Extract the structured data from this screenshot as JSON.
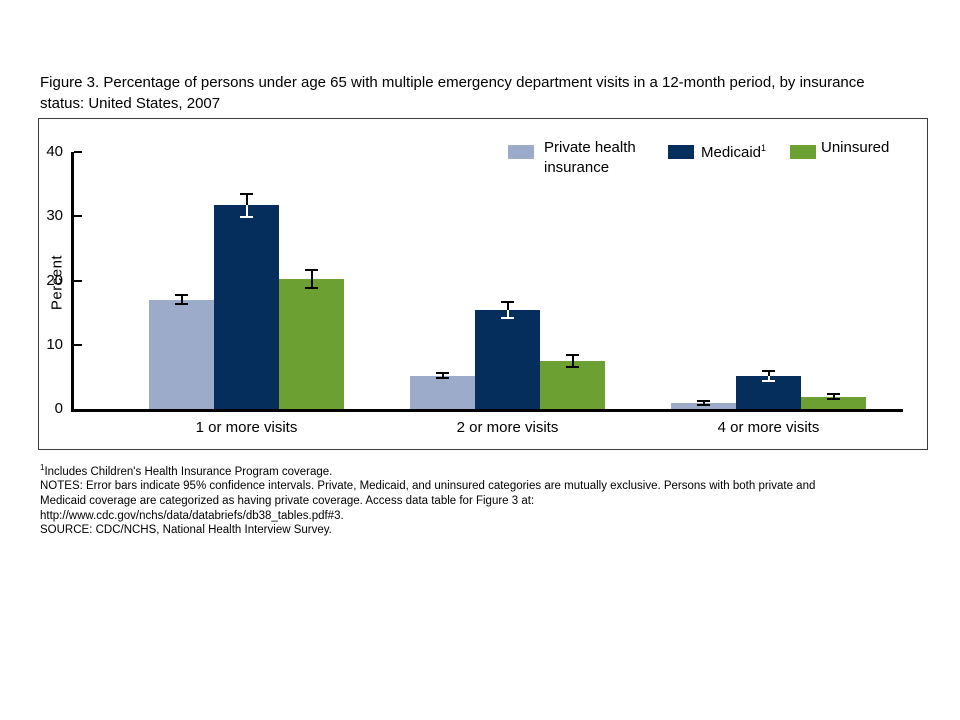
{
  "figure": {
    "title": "Figure 3. Percentage of persons under age 65 with multiple emergency department visits in a 12-month period, by insurance status: United States, 2007"
  },
  "chart_data": {
    "type": "bar",
    "title": "Percentage of persons under age 65 with multiple emergency department visits in a 12-month period, by insurance status: United States, 2007",
    "xlabel": "",
    "ylabel": "Percent",
    "ylim": [
      0,
      40
    ],
    "yticks": [
      0,
      10,
      20,
      30,
      40
    ],
    "grid": false,
    "legend_position": "top-right-inside",
    "error_bars_note": "Error bars indicate 95% confidence intervals",
    "categories": [
      "1 or more visits",
      "2 or more visits",
      "4 or more visits"
    ],
    "series": [
      {
        "name": "Private health insurance",
        "color": "#9CABC9",
        "values": [
          17.0,
          5.2,
          1.0
        ],
        "ci": [
          0.7,
          0.4,
          0.3
        ]
      },
      {
        "name": "Medicaid",
        "sup": "1",
        "color": "#052E5C",
        "values": [
          31.7,
          15.4,
          5.1
        ],
        "ci": [
          1.8,
          1.3,
          0.8
        ]
      },
      {
        "name": "Uninsured",
        "color": "#6CA033",
        "values": [
          20.2,
          7.5,
          1.9
        ],
        "ci": [
          1.4,
          0.9,
          0.4
        ]
      }
    ]
  },
  "footnotes": {
    "sup": "1",
    "line1": "Includes Children's Health Insurance Program coverage.",
    "notes1": "NOTES: Error bars indicate 95% confidence intervals. Private, Medicaid, and uninsured categories are mutually exclusive. Persons with both private and",
    "notes2": "Medicaid coverage are categorized as having private coverage. Access data table for Figure 3 at:",
    "url": "http://www.cdc.gov/nchs/data/databriefs/db38_tables.pdf#3.",
    "source": "SOURCE: CDC/NCHS, National Health Interview Survey."
  }
}
